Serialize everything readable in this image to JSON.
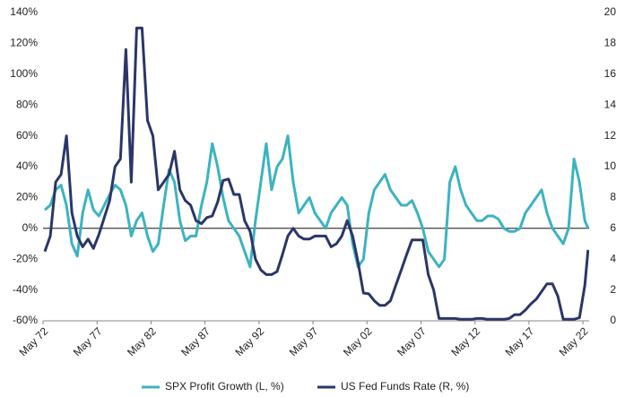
{
  "chart_data": {
    "type": "line",
    "x": [
      1972.5,
      1973,
      1973.5,
      1974,
      1974.5,
      1975,
      1975.5,
      1976,
      1976.5,
      1977,
      1977.5,
      1978,
      1978.5,
      1979,
      1979.5,
      1980,
      1980.5,
      1981,
      1981.5,
      1982,
      1982.5,
      1983,
      1983.5,
      1984,
      1984.5,
      1985,
      1985.5,
      1986,
      1986.5,
      1987,
      1987.5,
      1988,
      1988.5,
      1989,
      1989.5,
      1990,
      1990.5,
      1991,
      1991.5,
      1992,
      1992.5,
      1993,
      1993.5,
      1994,
      1994.5,
      1995,
      1995.5,
      1996,
      1996.5,
      1997,
      1997.5,
      1998,
      1998.5,
      1999,
      1999.5,
      2000,
      2000.5,
      2001,
      2001.5,
      2002,
      2002.5,
      2003,
      2003.5,
      2004,
      2004.5,
      2005,
      2005.5,
      2006,
      2006.5,
      2007,
      2007.5,
      2008,
      2008.5,
      2009,
      2009.5,
      2010,
      2010.5,
      2011,
      2011.5,
      2012,
      2012.5,
      2013,
      2013.5,
      2014,
      2014.5,
      2015,
      2015.5,
      2016,
      2016.5,
      2017,
      2017.5,
      2018,
      2018.5,
      2019,
      2019.5,
      2020,
      2020.5,
      2021,
      2021.5,
      2022,
      2022.5,
      2022.8
    ],
    "series": [
      {
        "name": "SPX Profit Growth (L, %)",
        "color": "#3cb3c0",
        "axis": "y",
        "values": [
          12,
          15,
          25,
          28,
          15,
          -10,
          -18,
          10,
          25,
          12,
          8,
          15,
          22,
          28,
          25,
          15,
          -5,
          5,
          10,
          -5,
          -15,
          -10,
          15,
          38,
          30,
          5,
          -8,
          -5,
          -5,
          15,
          30,
          55,
          40,
          20,
          5,
          0,
          -5,
          -15,
          -25,
          5,
          30,
          55,
          25,
          40,
          45,
          60,
          30,
          10,
          15,
          20,
          10,
          5,
          0,
          10,
          15,
          20,
          15,
          -10,
          -25,
          -20,
          10,
          25,
          30,
          35,
          25,
          20,
          15,
          15,
          18,
          10,
          0,
          -15,
          -20,
          -25,
          -20,
          30,
          40,
          25,
          15,
          10,
          5,
          5,
          8,
          8,
          6,
          0,
          -2,
          -2,
          0,
          10,
          15,
          20,
          25,
          10,
          0,
          -5,
          -10,
          0,
          45,
          30,
          5,
          0
        ]
      },
      {
        "name": "US Fed Funds Rate (R, %)",
        "color": "#2b3668",
        "axis": "y2",
        "values": [
          4.5,
          5.5,
          9,
          9.5,
          12,
          7,
          5.5,
          4.8,
          5.3,
          4.7,
          5.6,
          6.7,
          7.8,
          10,
          10.5,
          17.6,
          9,
          19,
          19,
          13,
          12,
          8.5,
          9,
          9.5,
          11,
          8.5,
          7.8,
          7.5,
          6.5,
          6.3,
          6.7,
          6.8,
          7.7,
          9.1,
          9.2,
          8.2,
          8.2,
          6.5,
          5.8,
          4,
          3.3,
          3,
          3,
          3.2,
          4.3,
          5.5,
          6,
          5.5,
          5.3,
          5.3,
          5.5,
          5.5,
          5.5,
          4.8,
          5,
          5.5,
          6.5,
          5.5,
          3.8,
          1.8,
          1.75,
          1.3,
          1,
          1,
          1.3,
          2.3,
          3.3,
          4.3,
          5.25,
          5.25,
          5.25,
          3,
          2,
          0.15,
          0.15,
          0.15,
          0.15,
          0.1,
          0.1,
          0.1,
          0.15,
          0.15,
          0.1,
          0.1,
          0.1,
          0.1,
          0.15,
          0.4,
          0.4,
          0.7,
          1.1,
          1.4,
          1.9,
          2.4,
          2.4,
          1.6,
          0.1,
          0.1,
          0.1,
          0.2,
          2.3,
          4.6
        ]
      }
    ],
    "xlim": [
      1972.33,
      2022.9
    ],
    "xticks": [
      {
        "value": 1972.33,
        "label": "May 72"
      },
      {
        "value": 1977.33,
        "label": "May 77"
      },
      {
        "value": 1982.33,
        "label": "May 82"
      },
      {
        "value": 1987.33,
        "label": "May 87"
      },
      {
        "value": 1992.33,
        "label": "May 92"
      },
      {
        "value": 1997.33,
        "label": "May 97"
      },
      {
        "value": 2002.33,
        "label": "May 02"
      },
      {
        "value": 2007.33,
        "label": "May 07"
      },
      {
        "value": 2012.33,
        "label": "May 12"
      },
      {
        "value": 2017.33,
        "label": "May 17"
      },
      {
        "value": 2022.33,
        "label": "May 22"
      }
    ],
    "ylim": [
      -60,
      140
    ],
    "yticks": [
      {
        "value": -60,
        "label": "-60%"
      },
      {
        "value": -40,
        "label": "-40%"
      },
      {
        "value": -20,
        "label": "-20%"
      },
      {
        "value": 0,
        "label": "0%"
      },
      {
        "value": 20,
        "label": "20%"
      },
      {
        "value": 40,
        "label": "40%"
      },
      {
        "value": 60,
        "label": "60%"
      },
      {
        "value": 80,
        "label": "80%"
      },
      {
        "value": 100,
        "label": "100%"
      },
      {
        "value": 120,
        "label": "120%"
      },
      {
        "value": 140,
        "label": "140%"
      }
    ],
    "y2lim": [
      0,
      20
    ],
    "y2ticks": [
      0,
      2,
      4,
      6,
      8,
      10,
      12,
      14,
      16,
      18,
      20
    ],
    "zero_line": true,
    "legend": "bottom"
  }
}
